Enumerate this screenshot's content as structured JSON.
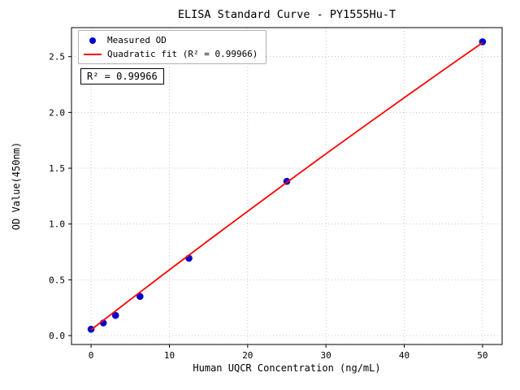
{
  "chart_data": {
    "type": "scatter",
    "title": "ELISA Standard Curve - PY1555Hu-T",
    "xlabel": "Human UQCR Concentration (ng/mL)",
    "ylabel": "OD Value(450nm)",
    "xlim": [
      -2.5,
      52.5
    ],
    "ylim": [
      -0.08,
      2.76
    ],
    "xticks": [
      0,
      10,
      20,
      30,
      40,
      50
    ],
    "yticks": [
      0.0,
      0.5,
      1.0,
      1.5,
      2.0,
      2.5
    ],
    "grid": true,
    "legend_position": "upper left",
    "annotation": "R² = 0.99966",
    "series": [
      {
        "name": "Measured OD",
        "type": "scatter",
        "color": "#0000cd",
        "x": [
          0,
          1.5625,
          3.125,
          6.25,
          12.5,
          25,
          50
        ],
        "y": [
          0.057,
          0.113,
          0.181,
          0.351,
          0.693,
          1.382,
          2.633
        ]
      },
      {
        "name": "Quadratic fit (R² = 0.99966)",
        "type": "line",
        "color": "#ff0000",
        "x": [
          0,
          5,
          10,
          15,
          20,
          25,
          30,
          35,
          40,
          45,
          50
        ],
        "y": [
          0.052,
          0.322,
          0.589,
          0.853,
          1.114,
          1.373,
          1.629,
          1.882,
          2.132,
          2.38,
          2.625
        ]
      }
    ]
  }
}
